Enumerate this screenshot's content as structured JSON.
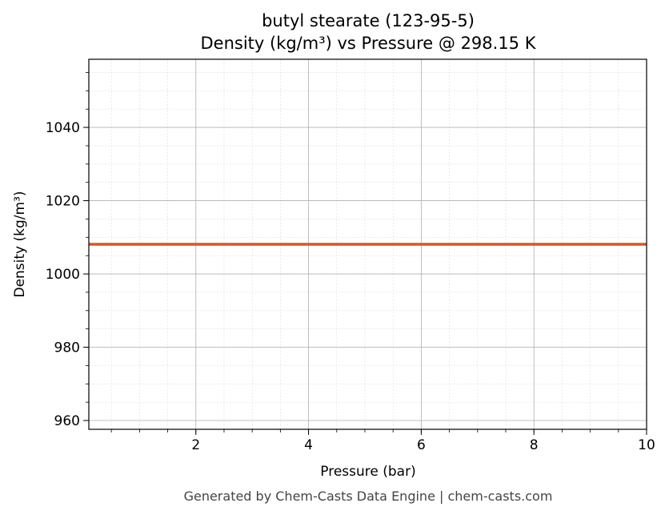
{
  "chart_data": {
    "type": "line",
    "title_line1": "butyl stearate (123-95-5)",
    "title_line2": "Density (kg/m³) vs Pressure @ 298.15 K",
    "xlabel": "Pressure (bar)",
    "ylabel": "Density (kg/m³)",
    "xlim": [
      0.1,
      10
    ],
    "ylim": [
      957.6,
      1058.6
    ],
    "x_ticks": [
      2,
      4,
      6,
      8,
      10
    ],
    "y_ticks": [
      960,
      980,
      1000,
      1020,
      1040
    ],
    "x_minor_step": 0.5,
    "y_minor_step": 5,
    "grid": true,
    "series": [
      {
        "x": [
          0.1,
          10
        ],
        "y": [
          1008.1,
          1008.1
        ],
        "color": "#DD5522"
      }
    ],
    "footer": "Generated by Chem-Casts Data Engine | chem-casts.com"
  }
}
